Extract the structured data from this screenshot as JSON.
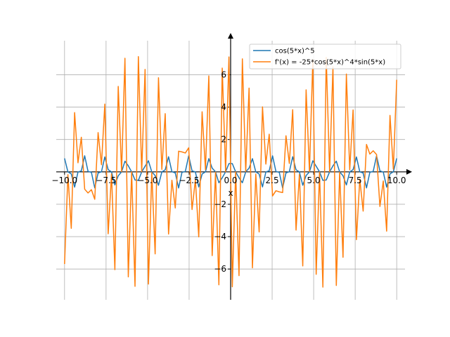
{
  "chart_data": {
    "type": "line",
    "title": "",
    "xlabel": "x",
    "ylabel": "",
    "xlim": [
      -10.5,
      10.5
    ],
    "ylim": [
      -7.9,
      8.1
    ],
    "grid": true,
    "legend_position": "top-right",
    "xticks": [
      -10,
      -7.5,
      -5,
      -2.5,
      0,
      2.5,
      5,
      7.5,
      10
    ],
    "xtick_labels": [
      "−10.0",
      "−7.5",
      "−5.0",
      "−2.5",
      "0.0",
      "2.5",
      "5.0",
      "7.5",
      "10.0"
    ],
    "yticks": [
      -6,
      -4,
      -2,
      2,
      4,
      6
    ],
    "ytick_labels": [
      "−6",
      "−4",
      "−2",
      "2",
      "4",
      "6"
    ],
    "sampling": {
      "x_start": -10,
      "x_end": 10,
      "num_points": 100
    },
    "series": [
      {
        "name": "cos(5*x)^5",
        "color": "#1f77b4",
        "function": "cos(5*x)^5"
      },
      {
        "name": "f'(x) = -25*cos(5*x)^4*sin(5*x)",
        "color": "#ff7f0e",
        "function": "-25*cos(5*x)^4*sin(5*x)"
      }
    ]
  }
}
